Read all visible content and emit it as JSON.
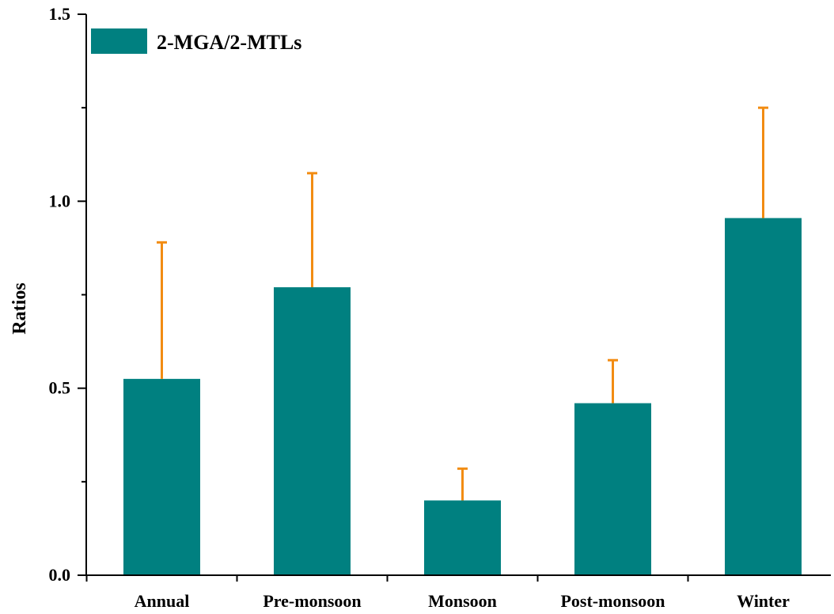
{
  "chart_data": {
    "type": "bar",
    "title": "",
    "xlabel": "",
    "ylabel": "Ratios",
    "ylim": [
      0.0,
      1.5
    ],
    "y_ticks": [
      "0.0",
      "0.5",
      "1.0",
      "1.5"
    ],
    "categories": [
      "Annual",
      "Pre-monsoon",
      "Monsoon",
      "Post-monsoon",
      "Winter"
    ],
    "series": [
      {
        "name": "2-MGA/2-MTLs",
        "values": [
          0.525,
          0.77,
          0.2,
          0.46,
          0.955
        ],
        "errors": [
          0.365,
          0.305,
          0.085,
          0.115,
          0.295
        ],
        "color": "#008080"
      }
    ],
    "error_bar_color": "#f28c12",
    "grid": false,
    "legend": {
      "placement": "top-left"
    }
  }
}
